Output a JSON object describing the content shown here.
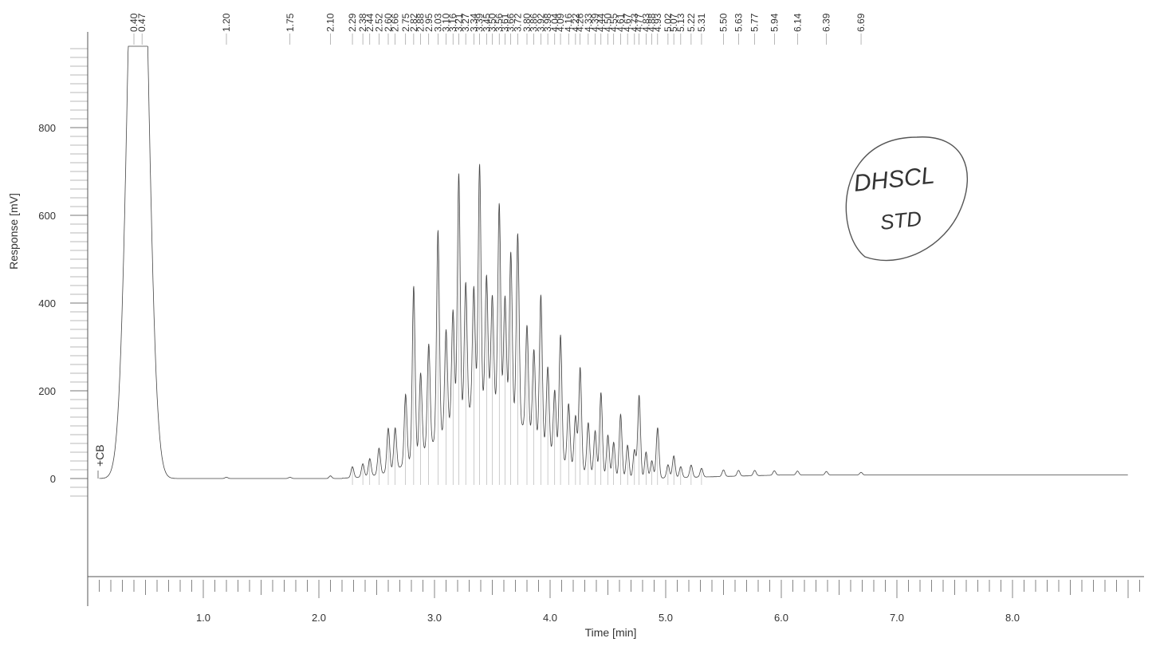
{
  "chart_data": {
    "type": "line",
    "xlabel": "Time [min]",
    "ylabel": "Response [mV]",
    "xlim": [
      0,
      9.0
    ],
    "ylim": [
      -250,
      1000
    ],
    "x_ticks": [
      "1.0",
      "2.0",
      "3.0",
      "4.0",
      "5.0",
      "6.0",
      "7.0",
      "8.0"
    ],
    "y_ticks": [
      "0",
      "200",
      "400",
      "600",
      "800"
    ],
    "baseline_mv": 0,
    "marker_label": "+CB",
    "handwritten_note": [
      "DHSCL",
      "STD"
    ],
    "series": [
      {
        "peaks": [
          {
            "rt": 0.4,
            "height": 980
          },
          {
            "rt": 0.47,
            "height": 980
          },
          {
            "rt": 1.2,
            "height": 3
          },
          {
            "rt": 1.75,
            "height": 3
          },
          {
            "rt": 2.1,
            "height": 6
          },
          {
            "rt": 2.29,
            "height": 25
          },
          {
            "rt": 2.38,
            "height": 30
          },
          {
            "rt": 2.44,
            "height": 40
          },
          {
            "rt": 2.52,
            "height": 60
          },
          {
            "rt": 2.6,
            "height": 100
          },
          {
            "rt": 2.66,
            "height": 95
          },
          {
            "rt": 2.75,
            "height": 160
          },
          {
            "rt": 2.82,
            "height": 395
          },
          {
            "rt": 2.88,
            "height": 185
          },
          {
            "rt": 2.95,
            "height": 235
          },
          {
            "rt": 3.03,
            "height": 475
          },
          {
            "rt": 3.1,
            "height": 230
          },
          {
            "rt": 3.16,
            "height": 260
          },
          {
            "rt": 3.21,
            "height": 560
          },
          {
            "rt": 3.27,
            "height": 300
          },
          {
            "rt": 3.34,
            "height": 280
          },
          {
            "rt": 3.39,
            "height": 555
          },
          {
            "rt": 3.45,
            "height": 300
          },
          {
            "rt": 3.5,
            "height": 255
          },
          {
            "rt": 3.56,
            "height": 470
          },
          {
            "rt": 3.61,
            "height": 265
          },
          {
            "rt": 3.66,
            "height": 375
          },
          {
            "rt": 3.72,
            "height": 430
          },
          {
            "rt": 3.8,
            "height": 240
          },
          {
            "rt": 3.86,
            "height": 200
          },
          {
            "rt": 3.92,
            "height": 340
          },
          {
            "rt": 3.98,
            "height": 190
          },
          {
            "rt": 4.04,
            "height": 150
          },
          {
            "rt": 4.09,
            "height": 285
          },
          {
            "rt": 4.16,
            "height": 140
          },
          {
            "rt": 4.22,
            "height": 120
          },
          {
            "rt": 4.26,
            "height": 235
          },
          {
            "rt": 4.33,
            "height": 115
          },
          {
            "rt": 4.39,
            "height": 100
          },
          {
            "rt": 4.44,
            "height": 190
          },
          {
            "rt": 4.5,
            "height": 95
          },
          {
            "rt": 4.55,
            "height": 80
          },
          {
            "rt": 4.61,
            "height": 145
          },
          {
            "rt": 4.67,
            "height": 75
          },
          {
            "rt": 4.73,
            "height": 65
          },
          {
            "rt": 4.77,
            "height": 190
          },
          {
            "rt": 4.83,
            "height": 60
          },
          {
            "rt": 4.88,
            "height": 40
          },
          {
            "rt": 4.93,
            "height": 115
          },
          {
            "rt": 5.02,
            "height": 30
          },
          {
            "rt": 5.07,
            "height": 50
          },
          {
            "rt": 5.13,
            "height": 25
          },
          {
            "rt": 5.22,
            "height": 28
          },
          {
            "rt": 5.31,
            "height": 20
          },
          {
            "rt": 5.5,
            "height": 15
          },
          {
            "rt": 5.63,
            "height": 13
          },
          {
            "rt": 5.77,
            "height": 12
          },
          {
            "rt": 5.94,
            "height": 10
          },
          {
            "rt": 6.14,
            "height": 9
          },
          {
            "rt": 6.39,
            "height": 8
          },
          {
            "rt": 6.69,
            "height": 6
          }
        ]
      }
    ],
    "top_rt_labels": [
      "0.40",
      "0.47",
      "1.20",
      "1.75",
      "2.10",
      "2.29",
      "2.38",
      "2.44",
      "2.52",
      "2.60",
      "2.66",
      "2.75",
      "2.82",
      "2.88",
      "2.95",
      "3.03",
      "3.10",
      "3.16",
      "3.21",
      "3.27",
      "3.34",
      "3.39",
      "3.45",
      "3.50",
      "3.56",
      "3.61",
      "3.66",
      "3.72",
      "3.80",
      "3.86",
      "3.92",
      "3.98",
      "4.04",
      "4.09",
      "4.16",
      "4.22",
      "4.26",
      "4.33",
      "4.39",
      "4.44",
      "4.50",
      "4.55",
      "4.61",
      "4.67",
      "4.73",
      "4.77",
      "4.83",
      "4.88",
      "4.93",
      "5.02",
      "5.07",
      "5.13",
      "5.22",
      "5.31",
      "5.50",
      "5.63",
      "5.77",
      "5.94",
      "6.14",
      "6.39",
      "6.69"
    ]
  }
}
